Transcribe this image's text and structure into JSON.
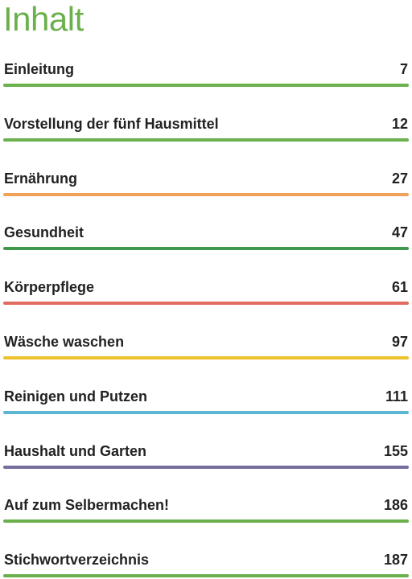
{
  "title": "Inhalt",
  "entries": [
    {
      "label": "Einleitung",
      "page": "7",
      "color": "#6ab04c"
    },
    {
      "label": "Vorstellung der fünf Hausmittel",
      "page": "12",
      "color": "#6ab04c"
    },
    {
      "label": "Ernährung",
      "page": "27",
      "color": "#f0a15a"
    },
    {
      "label": "Gesundheit",
      "page": "47",
      "color": "#3f9a4f"
    },
    {
      "label": "Körperpflege",
      "page": "61",
      "color": "#e06b5e"
    },
    {
      "label": "Wäsche waschen",
      "page": "97",
      "color": "#eec22c"
    },
    {
      "label": "Reinigen und Putzen",
      "page": "111",
      "color": "#5bb6d3"
    },
    {
      "label": "Haushalt und Garten",
      "page": "155",
      "color": "#756e9e"
    },
    {
      "label": "Auf zum Selbermachen!",
      "page": "186",
      "color": "#6ab04c"
    },
    {
      "label": "Stichwortverzeichnis",
      "page": "187",
      "color": "#6ab04c"
    }
  ]
}
